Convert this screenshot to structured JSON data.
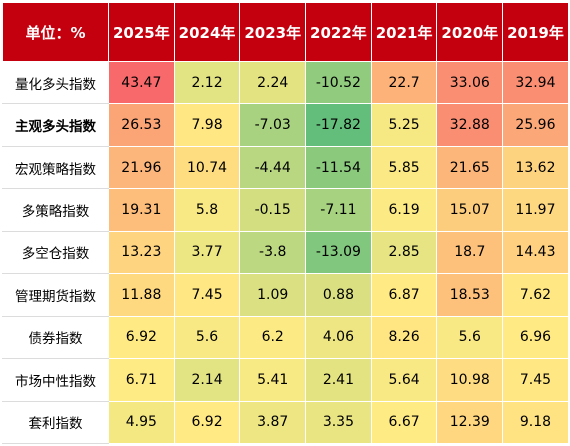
{
  "chart_data": {
    "type": "heatmap",
    "corner_label": "单位：%",
    "columns": [
      "2025年",
      "2024年",
      "2023年",
      "2022年",
      "2021年",
      "2020年",
      "2019年"
    ],
    "rows": [
      {
        "label": "量化多头指数",
        "bold": false,
        "values": [
          "43.47",
          "2.12",
          "2.24",
          "-10.52",
          "22.7",
          "33.06",
          "32.94"
        ]
      },
      {
        "label": "主观多头指数",
        "bold": true,
        "values": [
          "26.53",
          "7.98",
          "-7.03",
          "-17.82",
          "5.25",
          "32.88",
          "25.96"
        ]
      },
      {
        "label": "宏观策略指数",
        "bold": false,
        "values": [
          "21.96",
          "10.74",
          "-4.44",
          "-11.54",
          "5.85",
          "21.65",
          "13.62"
        ]
      },
      {
        "label": "多策略指数",
        "bold": false,
        "values": [
          "19.31",
          "5.8",
          "-0.15",
          "-7.11",
          "6.19",
          "15.07",
          "11.97"
        ]
      },
      {
        "label": "多空仓指数",
        "bold": false,
        "values": [
          "13.23",
          "3.77",
          "-3.8",
          "-13.09",
          "2.85",
          "18.7",
          "14.43"
        ]
      },
      {
        "label": "管理期货指数",
        "bold": false,
        "values": [
          "11.88",
          "7.45",
          "1.09",
          "0.88",
          "6.87",
          "18.53",
          "7.62"
        ]
      },
      {
        "label": "债券指数",
        "bold": false,
        "values": [
          "6.92",
          "5.6",
          "6.2",
          "4.06",
          "8.26",
          "5.6",
          "6.96"
        ]
      },
      {
        "label": "市场中性指数",
        "bold": false,
        "values": [
          "6.71",
          "2.14",
          "5.41",
          "2.41",
          "5.64",
          "10.98",
          "7.45"
        ]
      },
      {
        "label": "套利指数",
        "bold": false,
        "values": [
          "4.95",
          "6.92",
          "3.87",
          "3.35",
          "6.67",
          "12.39",
          "9.18"
        ]
      }
    ],
    "colors": {
      "header_bg": "#c4000f",
      "header_text": "#ffffff",
      "scale_low": "#63be7b",
      "scale_mid": "#ffeb84",
      "scale_high": "#f8696b"
    }
  }
}
